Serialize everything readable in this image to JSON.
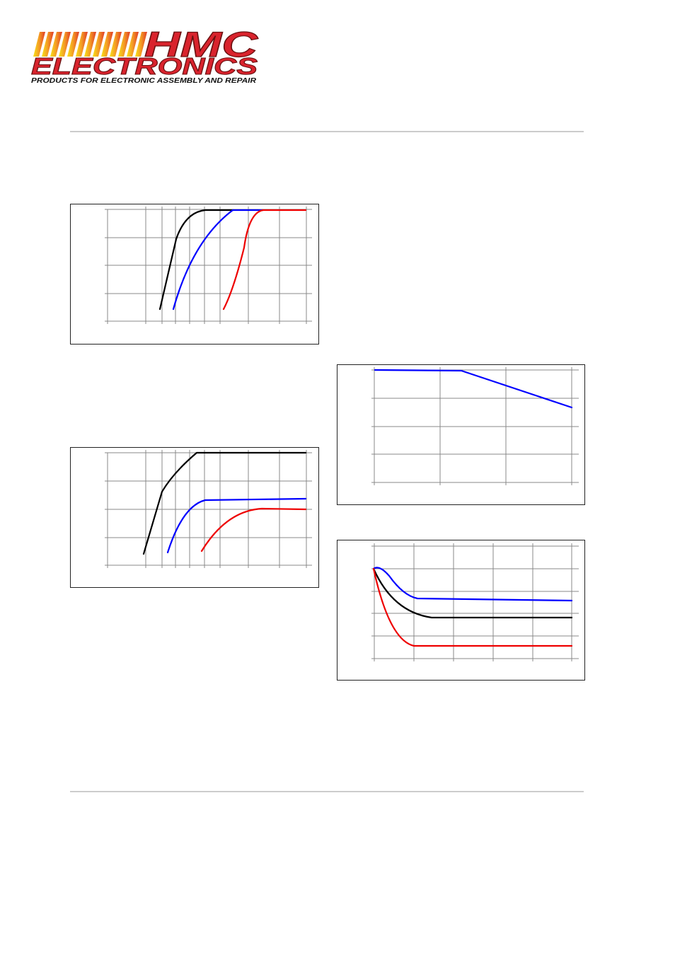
{
  "header": {
    "brand": "HMC",
    "brand_line2": "ELECTRONICS",
    "tagline": "PRODUCTS FOR ELECTRONIC ASSEMBLY AND REPAIR"
  }
}
